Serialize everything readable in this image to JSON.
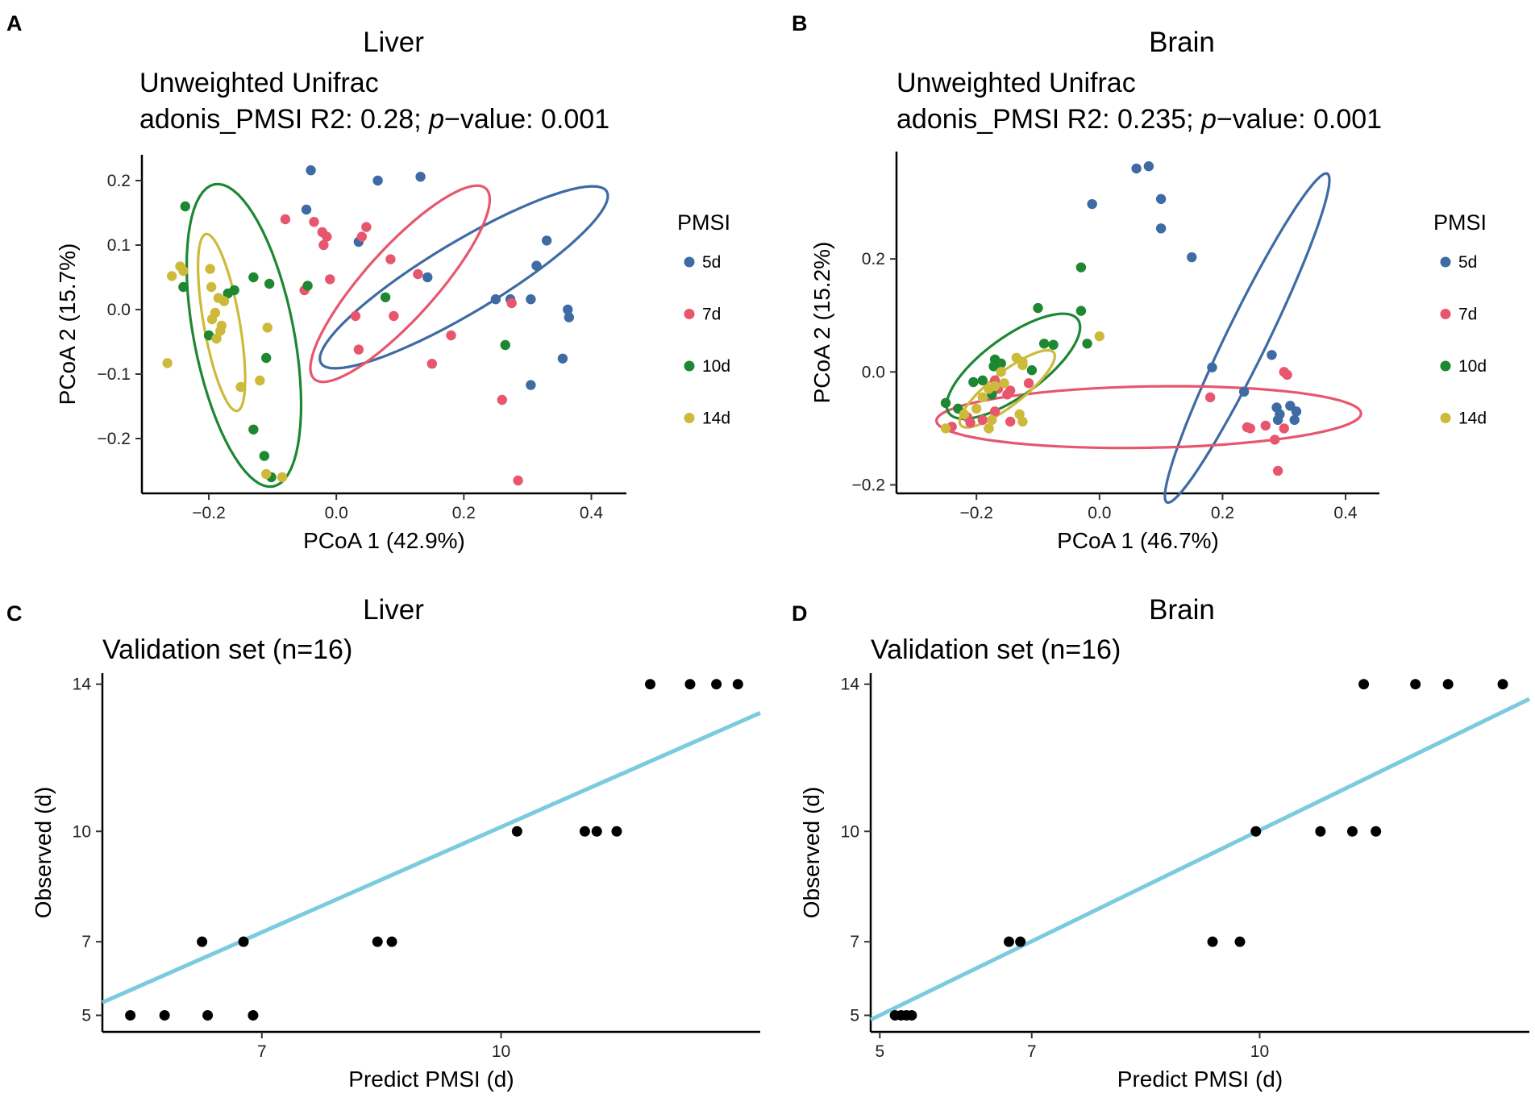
{
  "figure": {
    "panels": [
      {
        "id": "A",
        "label": "A",
        "title": "Liver",
        "subtitle1": "Unweighted Unifrac",
        "subtitle2_prefix": "adonis_PMSI R2: 0.28; ",
        "subtitle2_italic": "p",
        "subtitle2_suffix": "−value: 0.001"
      },
      {
        "id": "B",
        "label": "B",
        "title": "Brain",
        "subtitle1": "Unweighted Unifrac",
        "subtitle2_prefix": "adonis_PMSI R2: 0.235; ",
        "subtitle2_italic": "p",
        "subtitle2_suffix": "−value: 0.001"
      },
      {
        "id": "C",
        "label": "C",
        "title": "Liver",
        "subtitle1": "Validation set (n=16)"
      },
      {
        "id": "D",
        "label": "D",
        "title": "Brain",
        "subtitle1": "Validation set (n=16)"
      }
    ],
    "legend": {
      "title": "PMSI",
      "items": [
        {
          "label": "5d",
          "color": "#3E6BA4"
        },
        {
          "label": "7d",
          "color": "#E8566E"
        },
        {
          "label": "10d",
          "color": "#1E8732"
        },
        {
          "label": "14d",
          "color": "#CDBA3B"
        }
      ]
    },
    "regression_color": "#7BCBDE",
    "point_color": "#000000"
  },
  "chart_data": [
    {
      "panel": "A",
      "type": "scatter",
      "title": "Liver",
      "xlabel": "PCoA 1 (42.9%)",
      "ylabel": "PCoA 2 (15.7%)",
      "xlim": [
        -0.305,
        0.455
      ],
      "ylim": [
        -0.285,
        0.24
      ],
      "xticks": [
        -0.2,
        0.0,
        0.2,
        0.4
      ],
      "xtick_labels": [
        "−0.2",
        "0.0",
        "0.2",
        "0.4"
      ],
      "yticks": [
        -0.2,
        -0.1,
        0.0,
        0.1,
        0.2
      ],
      "ytick_labels": [
        "−0.2",
        "−0.1",
        "0.0",
        "0.1",
        "0.2"
      ],
      "series": [
        {
          "name": "5d",
          "color": "#3E6BA4",
          "points": [
            [
              -0.04,
              0.216
            ],
            [
              0.065,
              0.2
            ],
            [
              0.132,
              0.206
            ],
            [
              -0.047,
              0.155
            ],
            [
              0.035,
              0.105
            ],
            [
              0.143,
              0.05
            ],
            [
              0.25,
              0.016
            ],
            [
              0.305,
              0.016
            ],
            [
              0.314,
              0.068
            ],
            [
              0.33,
              0.107
            ],
            [
              0.363,
              0.0
            ],
            [
              0.365,
              -0.012
            ],
            [
              0.355,
              -0.076
            ],
            [
              0.305,
              -0.117
            ],
            [
              0.273,
              0.016
            ]
          ],
          "ellipse": {
            "cx": 0.2,
            "cy": 0.05,
            "rx": 0.26,
            "ry": 0.055,
            "angle_deg": -31
          }
        },
        {
          "name": "7d",
          "color": "#E8566E",
          "points": [
            [
              -0.08,
              0.14
            ],
            [
              -0.035,
              0.136
            ],
            [
              -0.02,
              0.1
            ],
            [
              -0.022,
              0.12
            ],
            [
              -0.015,
              0.113
            ],
            [
              0.04,
              0.113
            ],
            [
              0.047,
              0.128
            ],
            [
              0.085,
              0.078
            ],
            [
              0.128,
              0.055
            ],
            [
              -0.01,
              0.047
            ],
            [
              -0.05,
              0.03
            ],
            [
              0.03,
              -0.01
            ],
            [
              0.09,
              -0.01
            ],
            [
              0.035,
              -0.062
            ],
            [
              0.18,
              -0.04
            ],
            [
              0.15,
              -0.084
            ],
            [
              0.26,
              -0.14
            ],
            [
              0.275,
              0.01
            ],
            [
              0.285,
              -0.265
            ]
          ],
          "ellipse": {
            "cx": 0.1,
            "cy": 0.04,
            "rx": 0.2,
            "ry": 0.055,
            "angle_deg": -48
          }
        },
        {
          "name": "10d",
          "color": "#1E8732",
          "points": [
            [
              -0.237,
              0.16
            ],
            [
              -0.24,
              0.035
            ],
            [
              -0.13,
              0.05
            ],
            [
              -0.105,
              0.04
            ],
            [
              -0.16,
              0.03
            ],
            [
              -0.17,
              0.025
            ],
            [
              -0.11,
              -0.075
            ],
            [
              -0.2,
              -0.04
            ],
            [
              -0.045,
              0.037
            ],
            [
              0.077,
              0.019
            ],
            [
              0.265,
              -0.055
            ],
            [
              -0.13,
              -0.186
            ],
            [
              -0.113,
              -0.227
            ],
            [
              -0.102,
              -0.26
            ]
          ],
          "ellipse": {
            "cx": -0.145,
            "cy": -0.04,
            "rx": 0.24,
            "ry": 0.078,
            "angle_deg": -101
          }
        },
        {
          "name": "14d",
          "color": "#CDBA3B",
          "points": [
            [
              -0.258,
              0.052
            ],
            [
              -0.245,
              0.067
            ],
            [
              -0.24,
              0.06
            ],
            [
              -0.198,
              0.063
            ],
            [
              -0.196,
              0.035
            ],
            [
              -0.185,
              0.018
            ],
            [
              -0.176,
              0.013
            ],
            [
              -0.19,
              -0.005
            ],
            [
              -0.195,
              -0.015
            ],
            [
              -0.18,
              -0.025
            ],
            [
              -0.182,
              -0.033
            ],
            [
              -0.188,
              -0.045
            ],
            [
              -0.108,
              -0.028
            ],
            [
              -0.265,
              -0.083
            ],
            [
              -0.12,
              -0.11
            ],
            [
              -0.15,
              -0.12
            ],
            [
              -0.11,
              -0.255
            ],
            [
              -0.085,
              -0.26
            ]
          ],
          "ellipse": {
            "cx": -0.18,
            "cy": -0.02,
            "rx": 0.14,
            "ry": 0.028,
            "angle_deg": -100
          }
        }
      ]
    },
    {
      "panel": "B",
      "type": "scatter",
      "title": "Brain",
      "xlabel": "PCoA 1 (46.7%)",
      "ylabel": "PCoA 2 (15.2%)",
      "xlim": [
        -0.33,
        0.455
      ],
      "ylim": [
        -0.215,
        0.39
      ],
      "xticks": [
        -0.2,
        0.0,
        0.2,
        0.4
      ],
      "xtick_labels": [
        "−0.2",
        "0.0",
        "0.2",
        "0.4"
      ],
      "yticks": [
        -0.2,
        0.0,
        0.2
      ],
      "ytick_labels": [
        "−0.2",
        "0.0",
        "0.2"
      ],
      "series": [
        {
          "name": "5d",
          "color": "#3E6BA4",
          "points": [
            [
              0.06,
              0.36
            ],
            [
              0.08,
              0.364
            ],
            [
              -0.012,
              0.297
            ],
            [
              0.1,
              0.306
            ],
            [
              0.1,
              0.254
            ],
            [
              0.15,
              0.203
            ],
            [
              0.183,
              0.008
            ],
            [
              0.235,
              -0.035
            ],
            [
              0.28,
              0.03
            ],
            [
              0.288,
              -0.063
            ],
            [
              0.293,
              -0.075
            ],
            [
              0.31,
              -0.06
            ],
            [
              0.32,
              -0.07
            ],
            [
              0.317,
              -0.085
            ],
            [
              0.29,
              -0.085
            ]
          ],
          "ellipse": {
            "cx": 0.24,
            "cy": 0.06,
            "rx": 0.31,
            "ry": 0.035,
            "angle_deg": -64
          }
        },
        {
          "name": "7d",
          "color": "#E8566E",
          "points": [
            [
              -0.24,
              -0.097
            ],
            [
              -0.215,
              -0.08
            ],
            [
              -0.21,
              -0.09
            ],
            [
              -0.19,
              -0.085
            ],
            [
              -0.18,
              -0.1
            ],
            [
              -0.17,
              -0.015
            ],
            [
              -0.165,
              -0.03
            ],
            [
              -0.145,
              -0.033
            ],
            [
              -0.15,
              -0.04
            ],
            [
              -0.17,
              -0.07
            ],
            [
              -0.145,
              -0.088
            ],
            [
              -0.115,
              -0.02
            ],
            [
              0.18,
              -0.045
            ],
            [
              0.24,
              -0.098
            ],
            [
              0.245,
              -0.1
            ],
            [
              0.27,
              -0.095
            ],
            [
              0.285,
              -0.12
            ],
            [
              0.29,
              -0.175
            ],
            [
              0.3,
              -0.1
            ],
            [
              0.305,
              -0.005
            ],
            [
              0.3,
              0.0
            ]
          ],
          "ellipse": {
            "cx": 0.08,
            "cy": -0.08,
            "rx": 0.36,
            "ry": 0.052,
            "angle_deg": -1
          }
        },
        {
          "name": "10d",
          "color": "#1E8732",
          "points": [
            [
              -0.1,
              0.113
            ],
            [
              -0.03,
              0.108
            ],
            [
              -0.03,
              0.185
            ],
            [
              -0.09,
              0.05
            ],
            [
              -0.075,
              0.048
            ],
            [
              -0.02,
              0.05
            ],
            [
              -0.11,
              0.003
            ],
            [
              -0.17,
              0.022
            ],
            [
              -0.16,
              0.015
            ],
            [
              -0.172,
              0.01
            ],
            [
              -0.19,
              -0.015
            ],
            [
              -0.205,
              -0.018
            ],
            [
              -0.25,
              -0.055
            ],
            [
              -0.23,
              -0.065
            ],
            [
              -0.175,
              -0.04
            ]
          ],
          "ellipse": {
            "cx": -0.14,
            "cy": 0.01,
            "rx": 0.135,
            "ry": 0.05,
            "angle_deg": -36
          }
        },
        {
          "name": "14d",
          "color": "#CDBA3B",
          "points": [
            [
              -0.135,
              0.025
            ],
            [
              -0.125,
              0.018
            ],
            [
              -0.125,
              0.012
            ],
            [
              0.0,
              0.063
            ],
            [
              -0.16,
              0.0
            ],
            [
              -0.155,
              -0.02
            ],
            [
              -0.17,
              -0.025
            ],
            [
              -0.18,
              -0.03
            ],
            [
              -0.19,
              -0.045
            ],
            [
              -0.2,
              -0.065
            ],
            [
              -0.22,
              -0.075
            ],
            [
              -0.175,
              -0.085
            ],
            [
              -0.18,
              -0.1
            ],
            [
              -0.13,
              -0.075
            ],
            [
              -0.125,
              -0.088
            ],
            [
              -0.25,
              -0.1
            ]
          ],
          "ellipse": {
            "cx": -0.15,
            "cy": -0.03,
            "rx": 0.1,
            "ry": 0.028,
            "angle_deg": -38
          }
        }
      ]
    },
    {
      "panel": "C",
      "type": "scatter",
      "title": "Liver",
      "xlabel": "Predict PMSI (d)",
      "ylabel": "Observed (d)",
      "xlim": [
        5.0,
        13.25
      ],
      "ylim": [
        4.55,
        14.3
      ],
      "xticks": [
        7,
        10
      ],
      "xtick_labels": [
        "7",
        "10"
      ],
      "yticks": [
        5,
        7,
        10,
        14
      ],
      "ytick_labels": [
        "5",
        "7",
        "10",
        "14"
      ],
      "points": [
        [
          5.35,
          5
        ],
        [
          5.78,
          5
        ],
        [
          6.32,
          5
        ],
        [
          6.89,
          5
        ],
        [
          6.25,
          7
        ],
        [
          6.77,
          7
        ],
        [
          8.45,
          7
        ],
        [
          8.63,
          7
        ],
        [
          10.2,
          10
        ],
        [
          11.05,
          10
        ],
        [
          11.2,
          10
        ],
        [
          11.45,
          10
        ],
        [
          11.87,
          14
        ],
        [
          12.37,
          14
        ],
        [
          12.7,
          14
        ],
        [
          12.97,
          14
        ]
      ],
      "fit_line": {
        "x": [
          5.0,
          13.25
        ],
        "y": [
          5.35,
          13.22
        ]
      }
    },
    {
      "panel": "D",
      "type": "scatter",
      "title": "Brain",
      "xlabel": "Predict PMSI (d)",
      "ylabel": "Observed (d)",
      "xlim": [
        4.88,
        13.55
      ],
      "ylim": [
        4.55,
        14.3
      ],
      "xticks": [
        5,
        7,
        10
      ],
      "xtick_labels": [
        "5",
        "7",
        "10"
      ],
      "yticks": [
        5,
        7,
        10,
        14
      ],
      "ytick_labels": [
        "5",
        "7",
        "10",
        "14"
      ],
      "points": [
        [
          5.2,
          5
        ],
        [
          5.28,
          5
        ],
        [
          5.35,
          5
        ],
        [
          5.42,
          5
        ],
        [
          6.7,
          7
        ],
        [
          6.85,
          7
        ],
        [
          9.38,
          7
        ],
        [
          9.74,
          7
        ],
        [
          9.95,
          10
        ],
        [
          10.8,
          10
        ],
        [
          11.22,
          10
        ],
        [
          11.53,
          10
        ],
        [
          11.37,
          14
        ],
        [
          12.05,
          14
        ],
        [
          12.48,
          14
        ],
        [
          13.2,
          14
        ]
      ],
      "fit_line": {
        "x": [
          4.88,
          13.55
        ],
        "y": [
          4.88,
          13.6
        ]
      }
    }
  ]
}
